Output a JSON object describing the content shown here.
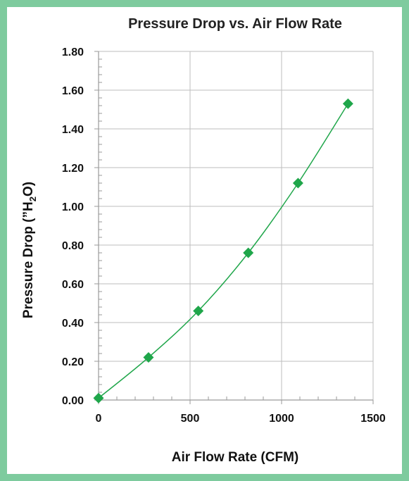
{
  "colors": {
    "frame": "#7ecb9e",
    "series": "#1fa64a",
    "grid": "#bdbdbd",
    "axis": "#9a9a9a"
  },
  "chart_data": {
    "type": "scatter",
    "title": "Pressure Drop vs. Air Flow Rate",
    "xlabel": "Air Flow Rate (CFM)",
    "ylabel": "Pressure Drop (\"H2O)",
    "ylabel_parts": {
      "before": "Pressure Drop (”H",
      "sub": "2",
      "after": "O)"
    },
    "xlim": [
      0,
      1500
    ],
    "ylim": [
      0,
      1.8
    ],
    "x_ticks": [
      "0",
      "500",
      "1000",
      "1500"
    ],
    "x_tick_values": [
      0,
      500,
      1000,
      1500
    ],
    "y_ticks": [
      "0.00",
      "0.20",
      "0.40",
      "0.60",
      "0.80",
      "1.00",
      "1.20",
      "1.40",
      "1.60",
      "1.80"
    ],
    "y_tick_values": [
      0,
      0.2,
      0.4,
      0.6,
      0.8,
      1.0,
      1.2,
      1.4,
      1.6,
      1.8
    ],
    "grid": true,
    "marker": "diamond",
    "line": "smooth",
    "series": [
      {
        "x": [
          0,
          273,
          545,
          818,
          1090,
          1363
        ],
        "y": [
          0.01,
          0.22,
          0.46,
          0.76,
          1.12,
          1.53
        ]
      }
    ]
  }
}
